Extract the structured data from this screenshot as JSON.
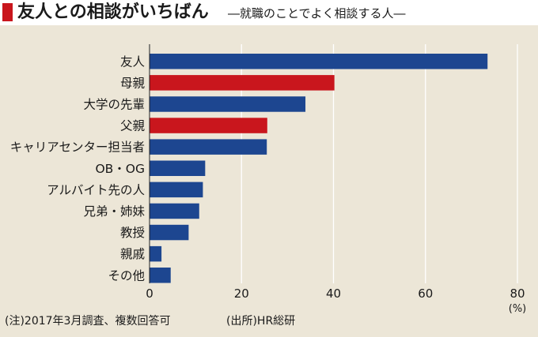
{
  "header": {
    "title": "友人との相談がいちばん",
    "subtitle": "―就職のことでよく相談する人―"
  },
  "colors": {
    "bar_default": "#1d4690",
    "bar_highlight": "#c9161d",
    "grid": "#ffffff",
    "panel": "#ece6d7"
  },
  "chart_data": {
    "type": "bar",
    "orientation": "horizontal",
    "categories": [
      "友人",
      "母親",
      "大学の先輩",
      "父親",
      "キャリアセンター担当者",
      "OB・OG",
      "アルバイト先の人",
      "兄弟・姉妹",
      "教授",
      "親戚",
      "その他"
    ],
    "values": [
      73.5,
      40.2,
      33.9,
      25.6,
      25.5,
      12.1,
      11.6,
      10.8,
      8.5,
      2.6,
      4.6
    ],
    "highlight": [
      "母親",
      "父親"
    ],
    "xlim": [
      0,
      80
    ],
    "xticks": [
      "0",
      "20",
      "40",
      "60",
      "80"
    ],
    "unit_label": "(%)",
    "grid": "vertical"
  },
  "footer": {
    "note": "(注)2017年3月調査、複数回答可",
    "source": "(出所)HR総研"
  }
}
